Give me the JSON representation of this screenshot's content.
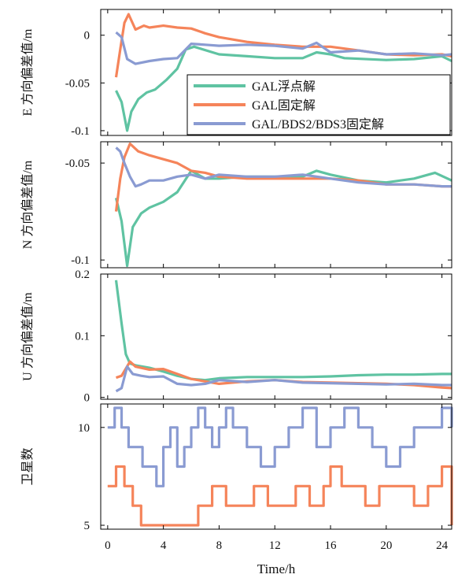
{
  "colors": {
    "float": "#5fc3a2",
    "fixed": "#f5845a",
    "multi": "#8a9bd2",
    "axis": "#000000"
  },
  "x_axis": {
    "label": "Time/h",
    "ticks": [
      "0",
      "4",
      "8",
      "12",
      "16",
      "20",
      "24"
    ],
    "range": [
      -0.5,
      24.7
    ]
  },
  "legend": {
    "float": "GAL浮点解",
    "fixed": "GAL固定解",
    "multi": "GAL/BDS2/BDS3固定解"
  },
  "chart_data": [
    {
      "type": "line",
      "panel": "E",
      "ylabel": "E 方向偏差值/m",
      "ylim": [
        -0.105,
        0.027
      ],
      "yticks": [
        "0",
        "-0.05",
        "-0.1"
      ],
      "legend_position": "inside-right",
      "series": [
        {
          "key": "float",
          "name": "GAL浮点解",
          "x": [
            0.6,
            1.0,
            1.4,
            1.7,
            2.2,
            2.8,
            3.4,
            4.2,
            5.0,
            5.6,
            6.2,
            8.0,
            10.0,
            12.0,
            14.0,
            15.0,
            16.0,
            17.0,
            20.0,
            22.0,
            24.0,
            24.7
          ],
          "y": [
            -0.058,
            -0.07,
            -0.1,
            -0.08,
            -0.067,
            -0.06,
            -0.057,
            -0.047,
            -0.035,
            -0.015,
            -0.012,
            -0.02,
            -0.022,
            -0.024,
            -0.024,
            -0.018,
            -0.02,
            -0.024,
            -0.026,
            -0.025,
            -0.022,
            -0.027
          ]
        },
        {
          "key": "fixed",
          "name": "GAL固定解",
          "x": [
            0.6,
            0.9,
            1.2,
            1.5,
            2.0,
            2.6,
            3.0,
            4.0,
            5.0,
            6.0,
            7.0,
            8.0,
            10.0,
            12.0,
            14.0,
            16.0,
            18.0,
            20.0,
            22.0,
            24.0,
            24.7
          ],
          "y": [
            -0.044,
            -0.015,
            0.013,
            0.022,
            0.006,
            0.01,
            0.008,
            0.01,
            0.008,
            0.007,
            0.002,
            -0.002,
            -0.007,
            -0.01,
            -0.012,
            -0.012,
            -0.016,
            -0.02,
            -0.021,
            -0.02,
            -0.022
          ]
        },
        {
          "key": "multi",
          "name": "GAL/BDS2/BDS3固定解",
          "x": [
            0.6,
            1.0,
            1.4,
            2.0,
            3.0,
            4.0,
            5.0,
            6.0,
            7.0,
            8.0,
            10.0,
            12.0,
            14.0,
            15.0,
            16.0,
            18.0,
            20.0,
            22.0,
            24.0,
            24.7
          ],
          "y": [
            0.003,
            -0.002,
            -0.025,
            -0.03,
            -0.027,
            -0.025,
            -0.024,
            -0.009,
            -0.01,
            -0.011,
            -0.01,
            -0.011,
            -0.014,
            -0.008,
            -0.018,
            -0.016,
            -0.02,
            -0.019,
            -0.021,
            -0.02
          ]
        }
      ]
    },
    {
      "type": "line",
      "panel": "N",
      "ylabel": "N 方向偏差值/m",
      "ylim": [
        -0.104,
        -0.039
      ],
      "yticks": [
        "-0.05",
        "-0.1"
      ],
      "series": [
        {
          "key": "float",
          "name": "GAL浮点解",
          "x": [
            0.6,
            1.0,
            1.4,
            1.8,
            2.4,
            3.0,
            4.0,
            5.0,
            6.0,
            7.0,
            8.0,
            10.0,
            12.0,
            14.0,
            15.0,
            16.0,
            18.0,
            20.0,
            22.0,
            23.5,
            24.7
          ],
          "y": [
            -0.068,
            -0.08,
            -0.103,
            -0.083,
            -0.076,
            -0.073,
            -0.07,
            -0.065,
            -0.054,
            -0.058,
            -0.058,
            -0.057,
            -0.057,
            -0.057,
            -0.054,
            -0.056,
            -0.059,
            -0.06,
            -0.058,
            -0.055,
            -0.059
          ]
        },
        {
          "key": "fixed",
          "name": "GAL固定解",
          "x": [
            0.6,
            0.9,
            1.2,
            1.6,
            2.2,
            3.0,
            4.0,
            5.0,
            6.0,
            7.0,
            8.0,
            10.0,
            12.0,
            14.0,
            16.0,
            18.0,
            20.0,
            22.0,
            24.0,
            24.7
          ],
          "y": [
            -0.075,
            -0.058,
            -0.047,
            -0.04,
            -0.044,
            -0.046,
            -0.048,
            -0.05,
            -0.054,
            -0.055,
            -0.057,
            -0.058,
            -0.058,
            -0.058,
            -0.058,
            -0.059,
            -0.061,
            -0.061,
            -0.062,
            -0.062
          ]
        },
        {
          "key": "multi",
          "name": "GAL/BDS2/BDS3固定解",
          "x": [
            0.6,
            0.9,
            1.2,
            1.6,
            2.0,
            2.4,
            3.0,
            4.0,
            5.0,
            6.0,
            7.0,
            8.0,
            10.0,
            12.0,
            14.0,
            16.0,
            18.0,
            20.0,
            22.0,
            24.0,
            24.7
          ],
          "y": [
            -0.042,
            -0.044,
            -0.05,
            -0.057,
            -0.062,
            -0.061,
            -0.059,
            -0.059,
            -0.057,
            -0.056,
            -0.058,
            -0.056,
            -0.057,
            -0.057,
            -0.056,
            -0.058,
            -0.06,
            -0.061,
            -0.061,
            -0.062,
            -0.062
          ]
        }
      ]
    },
    {
      "type": "line",
      "panel": "U",
      "ylabel": "U 方向偏差值/m",
      "ylim": [
        -0.003,
        0.2
      ],
      "yticks": [
        "0.2",
        "0.1",
        "0"
      ],
      "series": [
        {
          "key": "float",
          "name": "GAL浮点解",
          "x": [
            0.6,
            1.0,
            1.3,
            1.6,
            2.0,
            3.0,
            4.0,
            5.0,
            6.0,
            7.0,
            8.0,
            10.0,
            12.0,
            14.0,
            16.0,
            18.0,
            20.0,
            22.0,
            24.0,
            24.7
          ],
          "y": [
            0.19,
            0.12,
            0.07,
            0.055,
            0.052,
            0.048,
            0.042,
            0.035,
            0.03,
            0.028,
            0.031,
            0.033,
            0.033,
            0.033,
            0.034,
            0.036,
            0.037,
            0.037,
            0.038,
            0.038
          ]
        },
        {
          "key": "fixed",
          "name": "GAL固定解",
          "x": [
            0.6,
            1.0,
            1.6,
            2.0,
            3.0,
            4.0,
            5.0,
            6.0,
            7.0,
            8.0,
            10.0,
            12.0,
            14.0,
            16.0,
            18.0,
            20.0,
            22.0,
            24.0,
            24.7
          ],
          "y": [
            0.032,
            0.035,
            0.058,
            0.05,
            0.045,
            0.046,
            0.038,
            0.03,
            0.026,
            0.022,
            0.026,
            0.028,
            0.025,
            0.024,
            0.023,
            0.022,
            0.02,
            0.016,
            0.015
          ]
        },
        {
          "key": "multi",
          "name": "GAL/BDS2/BDS3固定解",
          "x": [
            0.6,
            1.0,
            1.4,
            1.8,
            2.4,
            3.0,
            4.0,
            5.0,
            6.0,
            7.0,
            8.0,
            10.0,
            12.0,
            14.0,
            16.0,
            18.0,
            20.0,
            22.0,
            24.0,
            24.7
          ],
          "y": [
            0.01,
            0.015,
            0.05,
            0.038,
            0.035,
            0.033,
            0.034,
            0.022,
            0.02,
            0.022,
            0.028,
            0.025,
            0.028,
            0.024,
            0.023,
            0.022,
            0.021,
            0.022,
            0.02,
            0.02
          ]
        }
      ]
    },
    {
      "type": "line",
      "panel": "SAT",
      "ylabel": "卫星数",
      "ylim": [
        4.8,
        11.2
      ],
      "yticks": [
        "10",
        "5"
      ],
      "step": true,
      "series": [
        {
          "key": "fixed",
          "name": "GAL固定解",
          "x": [
            0.0,
            0.6,
            1.2,
            1.8,
            2.4,
            3.0,
            4.5,
            6.0,
            6.5,
            7.5,
            8.5,
            9.5,
            10.5,
            11.5,
            12.5,
            13.5,
            14.5,
            15.5,
            16.0,
            16.8,
            17.5,
            18.5,
            19.5,
            20.5,
            21.5,
            22.0,
            23.0,
            24.0,
            24.5,
            24.7
          ],
          "y": [
            7,
            8,
            7,
            6,
            5,
            5,
            5,
            5,
            6,
            7,
            6,
            6,
            7,
            6,
            6,
            7,
            6,
            7,
            8,
            7,
            7,
            6,
            7,
            7,
            7,
            6,
            7,
            8,
            8,
            5
          ]
        },
        {
          "key": "multi",
          "name": "GAL/BDS2/BDS3固定解",
          "x": [
            0.0,
            0.5,
            1.0,
            1.5,
            2.0,
            2.5,
            3.0,
            3.5,
            4.0,
            4.5,
            5.0,
            5.5,
            6.0,
            6.5,
            7.0,
            7.5,
            8.0,
            8.5,
            9.0,
            10.0,
            11.0,
            12.0,
            13.0,
            14.0,
            15.0,
            16.0,
            17.0,
            18.0,
            19.0,
            20.0,
            21.0,
            22.0,
            23.0,
            24.0,
            24.7
          ],
          "y": [
            10,
            11,
            10,
            9,
            9,
            8,
            8,
            7,
            9,
            10,
            8,
            9,
            10,
            11,
            10,
            9,
            10,
            11,
            10,
            9,
            8,
            9,
            10,
            11,
            9,
            10,
            11,
            10,
            9,
            8,
            9,
            10,
            10,
            11,
            10
          ]
        }
      ]
    }
  ]
}
